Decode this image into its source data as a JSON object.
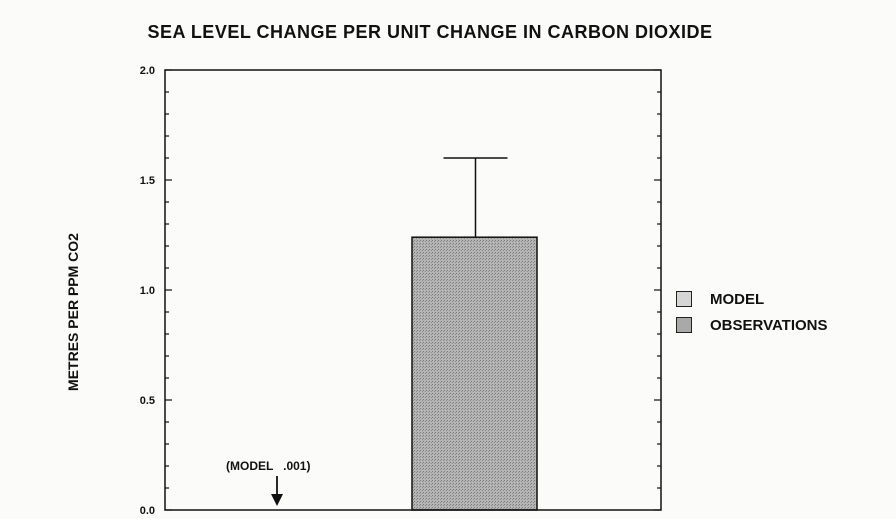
{
  "chart_data": {
    "type": "bar",
    "title": "SEA LEVEL CHANGE PER UNIT CHANGE IN CARBON DIOXIDE",
    "xlabel": "",
    "ylabel": "METRES PER PPM CO2",
    "ylim": [
      0,
      2.0
    ],
    "yticks": [
      "0.0",
      "0.5",
      "1.0",
      "1.5",
      "2.0"
    ],
    "grid": false,
    "legend_position": "right",
    "series": [
      {
        "name": "MODEL",
        "value": 0.001,
        "color": "#d6d6d6"
      },
      {
        "name": "OBSERVATIONS",
        "value": 1.24,
        "error_upper": 1.6,
        "color": "#a9a9a9"
      }
    ],
    "annotation": "(MODEL   .001)"
  }
}
